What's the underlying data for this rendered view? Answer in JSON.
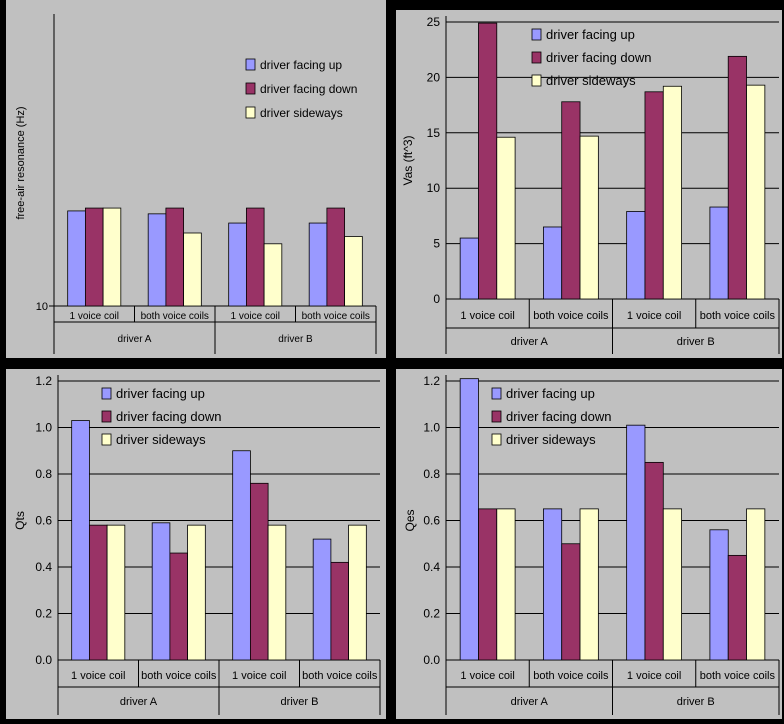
{
  "colors": {
    "up": "#9999ff",
    "down": "#993366",
    "side": "#ffffcc",
    "panel": "#c0c0c0",
    "grid": "#000000"
  },
  "chart_data": [
    {
      "type": "bar",
      "ylabel": "free-air resonance (Hz)",
      "log_scale": true,
      "ylim": [
        10,
        100
      ],
      "yticks": [
        "10"
      ],
      "grid": false,
      "legend_position": "top-right",
      "categories": [
        "1 voice coil",
        "both voice coils",
        "1 voice coil",
        "both voice coils"
      ],
      "groups": [
        "driver A",
        "driver B"
      ],
      "series": [
        {
          "name": "driver facing up",
          "values": [
            21.5,
            21.0,
            19.5,
            19.5
          ]
        },
        {
          "name": "driver facing down",
          "values": [
            22.0,
            22.0,
            22.0,
            22.0
          ]
        },
        {
          "name": "driver sideways",
          "values": [
            22.0,
            18.0,
            16.5,
            17.5
          ]
        }
      ]
    },
    {
      "type": "bar",
      "ylabel": "Vas (ft^3)",
      "ylim": [
        0,
        25
      ],
      "yticks": [
        "0",
        "5",
        "10",
        "15",
        "20",
        "25"
      ],
      "grid": true,
      "legend_position": "top-right",
      "categories": [
        "1 voice coil",
        "both voice coils",
        "1 voice coil",
        "both voice coils"
      ],
      "groups": [
        "driver A",
        "driver B"
      ],
      "series": [
        {
          "name": "driver facing up",
          "values": [
            5.5,
            6.5,
            7.9,
            8.3
          ]
        },
        {
          "name": "driver facing down",
          "values": [
            24.9,
            17.8,
            18.7,
            21.9
          ]
        },
        {
          "name": "driver sideways",
          "values": [
            14.6,
            14.7,
            19.2,
            19.3
          ]
        }
      ]
    },
    {
      "type": "bar",
      "ylabel": "Qts",
      "ylim": [
        0,
        1.2
      ],
      "yticks": [
        "0.0",
        "0.2",
        "0.4",
        "0.6",
        "0.8",
        "1.0",
        "1.2"
      ],
      "grid": true,
      "legend_position": "top-right",
      "categories": [
        "1 voice coil",
        "both voice coils",
        "1 voice coil",
        "both voice coils"
      ],
      "groups": [
        "driver A",
        "driver B"
      ],
      "series": [
        {
          "name": "driver facing up",
          "values": [
            1.03,
            0.59,
            0.9,
            0.52
          ]
        },
        {
          "name": "driver facing down",
          "values": [
            0.58,
            0.46,
            0.76,
            0.42
          ]
        },
        {
          "name": "driver sideways",
          "values": [
            0.58,
            0.58,
            0.58,
            0.58
          ]
        }
      ]
    },
    {
      "type": "bar",
      "ylabel": "Qes",
      "ylim": [
        0,
        1.2
      ],
      "yticks": [
        "0.0",
        "0.2",
        "0.4",
        "0.6",
        "0.8",
        "1.0",
        "1.2"
      ],
      "grid": true,
      "legend_position": "top-right",
      "categories": [
        "1 voice coil",
        "both voice coils",
        "1 voice coil",
        "both voice coils"
      ],
      "groups": [
        "driver A",
        "driver B"
      ],
      "series": [
        {
          "name": "driver facing up",
          "values": [
            1.21,
            0.65,
            1.01,
            0.56
          ]
        },
        {
          "name": "driver facing down",
          "values": [
            0.65,
            0.5,
            0.85,
            0.45
          ]
        },
        {
          "name": "driver sideways",
          "values": [
            0.65,
            0.65,
            0.65,
            0.65
          ]
        }
      ]
    }
  ]
}
